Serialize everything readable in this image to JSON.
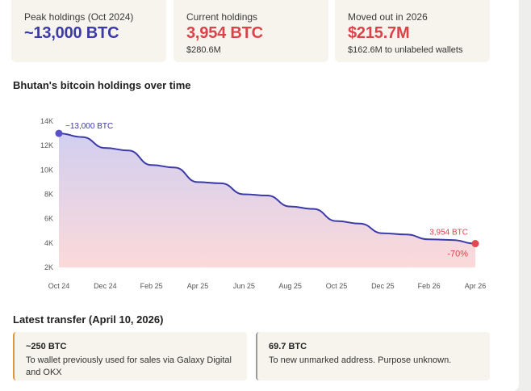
{
  "stats": [
    {
      "label": "Peak holdings (Oct 2024)",
      "value": "~13,000 BTC",
      "sub": ""
    },
    {
      "label": "Current holdings",
      "value": "3,954 BTC",
      "sub": "$280.6M"
    },
    {
      "label": "Moved out in 2026",
      "value": "$215.7M",
      "sub": "$162.6M to unlabeled wallets"
    }
  ],
  "colors": {
    "blue": "#3b3aa6",
    "red": "#d9434a",
    "orange_accent": "#e0953a",
    "gray_accent": "#9a9a9a"
  },
  "chart_data": {
    "type": "area",
    "title": "Bhutan's bitcoin holdings over time",
    "xlabel": "",
    "ylabel": "",
    "x_tick_labels": [
      "Oct 24",
      "Dec 24",
      "Feb 25",
      "Apr 25",
      "Jun 25",
      "Aug 25",
      "Oct 25",
      "Dec 25",
      "Feb 26",
      "Apr 26"
    ],
    "y_tick_labels": [
      "14K",
      "12K",
      "10K",
      "8K",
      "6K",
      "4K",
      "2K"
    ],
    "ylim": [
      2000,
      14000
    ],
    "grid": false,
    "series": [
      {
        "name": "",
        "x": [
          "Oct 24",
          "Nov 24",
          "Dec 24",
          "Jan 25",
          "Feb 25",
          "Mar 25",
          "Apr 25",
          "May 25",
          "Jun 25",
          "Jul 25",
          "Aug 25",
          "Sep 25",
          "Oct 25",
          "Nov 25",
          "Dec 25",
          "Jan 26",
          "Feb 26",
          "Mar 26",
          "Apr 26"
        ],
        "values": [
          13000,
          12700,
          11800,
          11600,
          10400,
          10200,
          9000,
          8900,
          8000,
          7900,
          7000,
          6800,
          5800,
          5600,
          4800,
          4700,
          4300,
          4250,
          3954
        ]
      }
    ],
    "annotations": {
      "start_label": "~13,000 BTC",
      "end_label": "3,954 BTC",
      "change_label": "-70%"
    }
  },
  "latest_transfer": {
    "title": "Latest transfer (April 10, 2026)",
    "cards": [
      {
        "amount": "~250 BTC",
        "text": "To wallet previously used for sales via Galaxy Digital and OKX"
      },
      {
        "amount": "69.7 BTC",
        "text": "To new unmarked address. Purpose unknown."
      }
    ]
  }
}
